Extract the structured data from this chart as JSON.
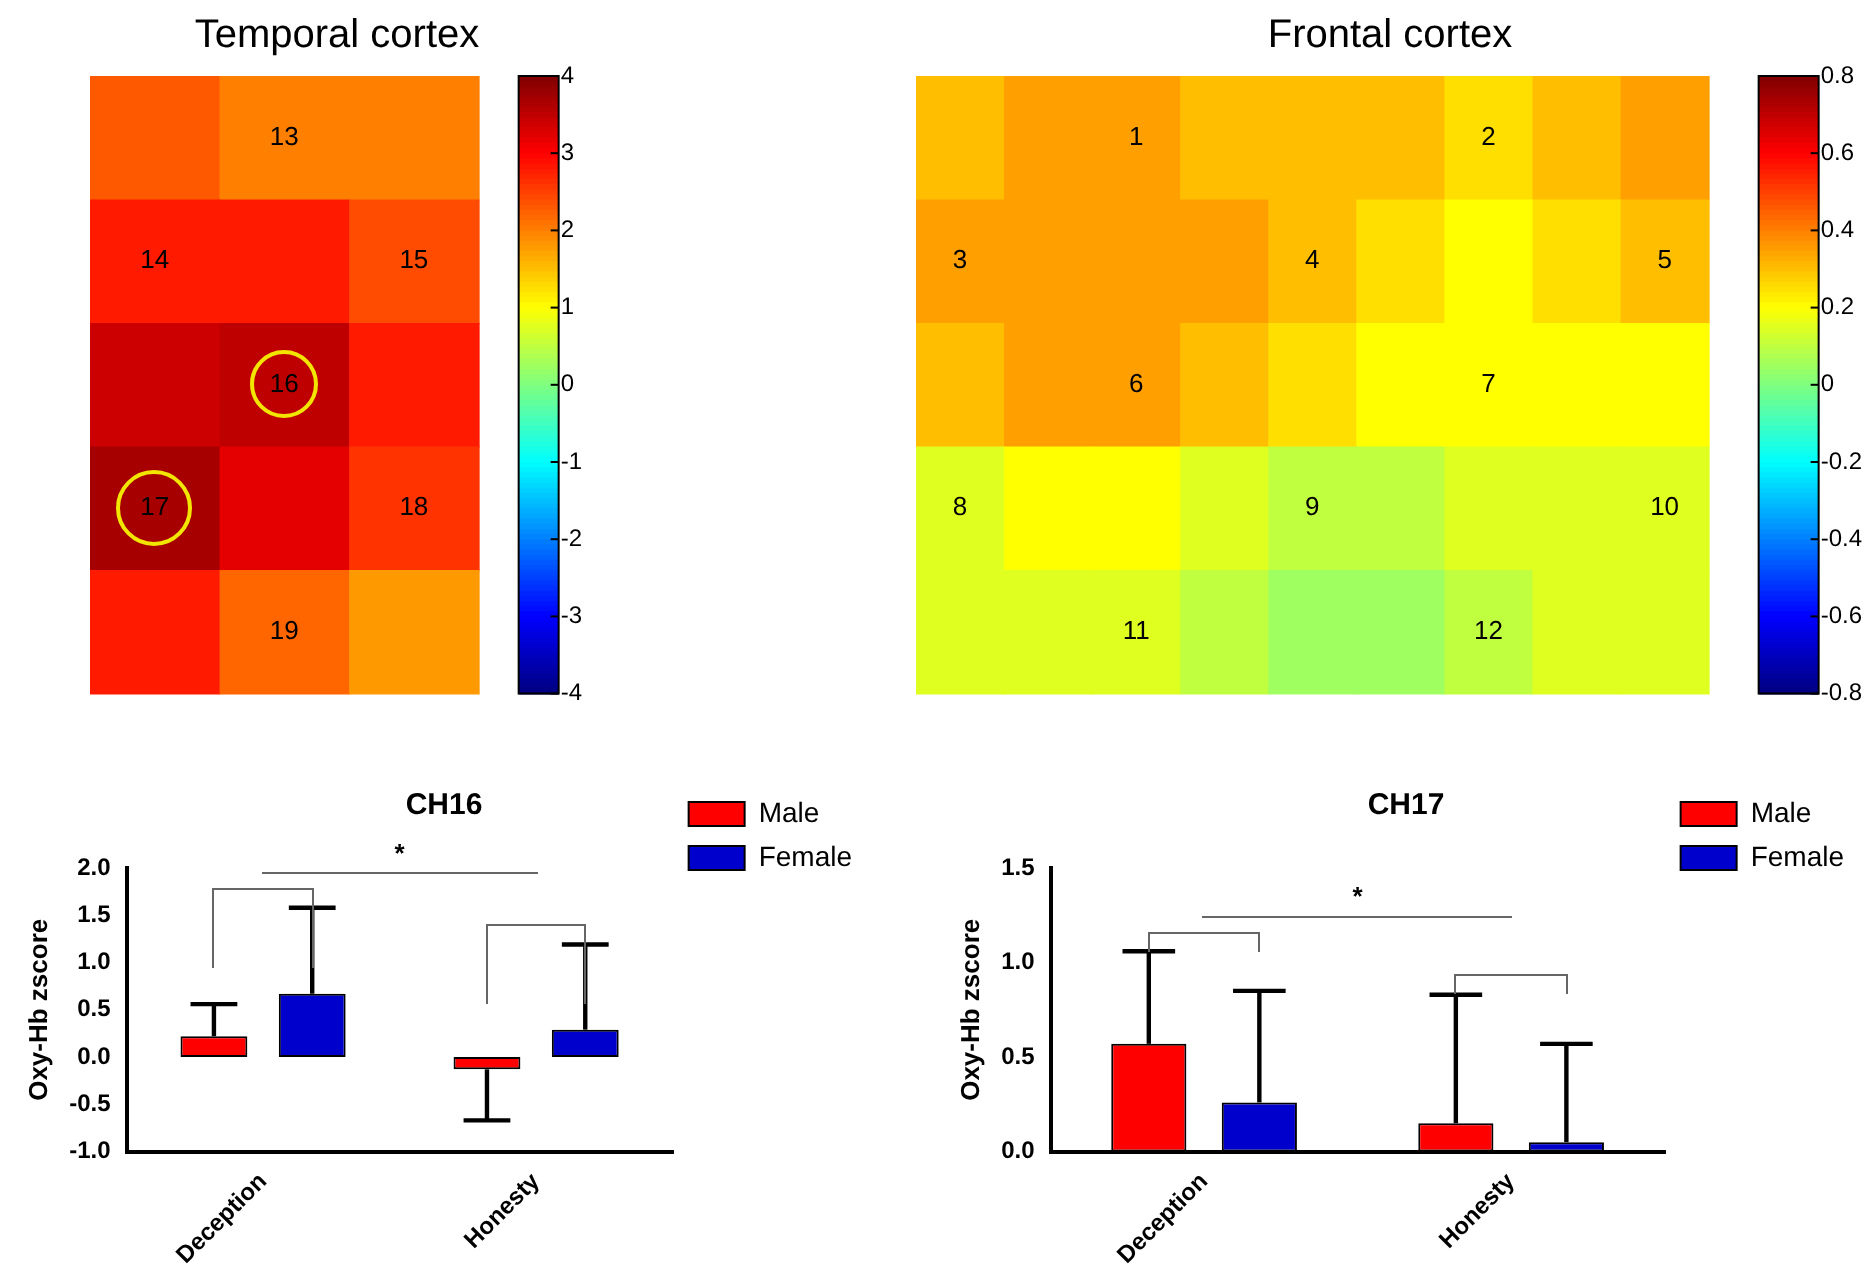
{
  "chart_data": [
    {
      "type": "heatmap",
      "title": "Temporal cortex",
      "categories": [
        null,
        null,
        null
      ],
      "y_categories": [
        null,
        null,
        null,
        null,
        null
      ],
      "cells": [
        [
          2.3,
          2.0,
          2.0
        ],
        [
          2.8,
          2.8,
          2.4
        ],
        [
          3.4,
          3.5,
          2.8
        ],
        [
          3.7,
          3.2,
          2.6
        ],
        [
          2.8,
          2.2,
          1.8
        ]
      ],
      "annotations": [
        "13",
        "14",
        "15",
        "16",
        "17",
        "18",
        "19"
      ],
      "clim": [
        -4,
        4
      ],
      "cticks": [
        -4,
        -3,
        -2,
        -1,
        0,
        1,
        2,
        3,
        4
      ]
    },
    {
      "type": "heatmap",
      "title": "Frontal cortex",
      "categories": [
        null,
        null,
        null,
        null,
        null,
        null,
        null,
        null,
        null
      ],
      "y_categories": [
        null,
        null,
        null,
        null,
        null
      ],
      "cells": [
        [
          0.3,
          0.35,
          0.35,
          0.3,
          0.3,
          0.3,
          0.25,
          0.3,
          0.35
        ],
        [
          0.35,
          0.35,
          0.35,
          0.35,
          0.3,
          0.25,
          0.2,
          0.25,
          0.3
        ],
        [
          0.3,
          0.35,
          0.35,
          0.3,
          0.25,
          0.2,
          0.2,
          0.2,
          0.2
        ],
        [
          0.15,
          0.2,
          0.2,
          0.15,
          0.1,
          0.1,
          0.15,
          0.15,
          0.15
        ],
        [
          0.15,
          0.15,
          0.15,
          0.1,
          0.05,
          0.05,
          0.1,
          0.15,
          0.15
        ]
      ],
      "annotations": [
        "1",
        "2",
        "3",
        "4",
        "5",
        "6",
        "7",
        "8",
        "9",
        "10",
        "11",
        "12"
      ],
      "clim": [
        -0.8,
        0.8
      ],
      "cticks": [
        -0.8,
        -0.6,
        -0.4,
        -0.2,
        0,
        0.2,
        0.4,
        0.6,
        0.8
      ]
    },
    {
      "type": "bar",
      "title": "CH16",
      "categories": [
        "Deception",
        "Honesty"
      ],
      "ylabel": "Oxy-Hb zscore",
      "ylim": [
        -1,
        2
      ],
      "yticks": [
        {
          "value": -1,
          "label": "-1.0"
        },
        {
          "value": -0.5,
          "label": "-0.5"
        },
        {
          "value": 0,
          "label": "0.0"
        },
        {
          "value": 0.5,
          "label": "0.5"
        },
        {
          "value": 1,
          "label": "1.0"
        },
        {
          "value": 1.5,
          "label": "1.5"
        },
        {
          "value": 2,
          "label": "2.0"
        }
      ],
      "series": [
        {
          "name": "Male",
          "color": "#ff0000",
          "values": [
            0.22,
            -0.13
          ],
          "errors": [
            [
              0.22,
              0.56
            ],
            [
              -0.67,
              -0.13
            ]
          ]
        },
        {
          "name": "Female",
          "color": "#0000cc",
          "values": [
            0.67,
            0.29
          ],
          "errors": [
            [
              0.67,
              1.58
            ],
            [
              0.29,
              1.19
            ]
          ]
        }
      ],
      "legend": "top right",
      "annotations": [
        "*"
      ]
    },
    {
      "type": "bar",
      "title": "CH17",
      "categories": [
        "Deception",
        "Honesty"
      ],
      "ylabel": "Oxy-Hb zscore",
      "ylim": [
        0,
        1.5
      ],
      "yticks": [
        {
          "value": 0,
          "label": "0.0"
        },
        {
          "value": 0.5,
          "label": "0.5"
        },
        {
          "value": 1,
          "label": "1.0"
        },
        {
          "value": 1.5,
          "label": "1.5"
        }
      ],
      "series": [
        {
          "name": "Male",
          "color": "#ff0000",
          "values": [
            0.57,
            0.15
          ],
          "errors": [
            [
              0.57,
              1.06
            ],
            [
              0.15,
              0.83
            ]
          ]
        },
        {
          "name": "Female",
          "color": "#0000cc",
          "values": [
            0.26,
            0.05
          ],
          "errors": [
            [
              0.26,
              0.85
            ],
            [
              0.05,
              0.57
            ]
          ]
        }
      ],
      "legend": "top right",
      "annotations": [
        "*"
      ]
    }
  ]
}
